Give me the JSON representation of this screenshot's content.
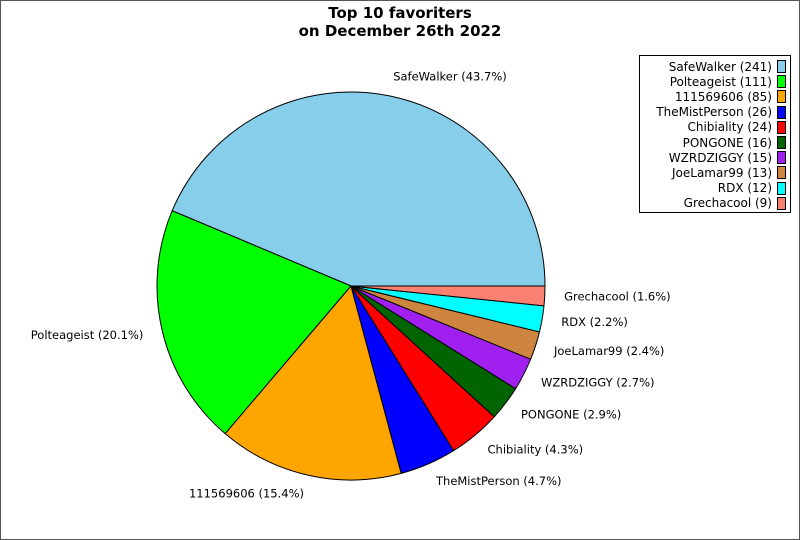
{
  "chart_data": {
    "type": "pie",
    "title_line1": "Top 10 favoriters",
    "title_line2": "on December 26th 2022",
    "start_angle_deg": 0,
    "direction": "counterclockwise",
    "legend_placement": "top-right",
    "slices": [
      {
        "name": "SafeWalker",
        "value": 241,
        "percent_label": "SafeWalker (43.7%)",
        "legend_label": "SafeWalker (241)",
        "color": "#87CEEB"
      },
      {
        "name": "Polteageist",
        "value": 111,
        "percent_label": "Polteageist (20.1%)",
        "legend_label": "Polteageist (111)",
        "color": "#00FF00"
      },
      {
        "name": "111569606",
        "value": 85,
        "percent_label": "111569606 (15.4%)",
        "legend_label": "111569606 (85)",
        "color": "#FFA500"
      },
      {
        "name": "TheMistPerson",
        "value": 26,
        "percent_label": "TheMistPerson (4.7%)",
        "legend_label": "TheMistPerson (26)",
        "color": "#0000FF"
      },
      {
        "name": "Chibiality",
        "value": 24,
        "percent_label": "Chibiality (4.3%)",
        "legend_label": "Chibiality (24)",
        "color": "#FF0000"
      },
      {
        "name": "PONGONE",
        "value": 16,
        "percent_label": "PONGONE (2.9%)",
        "legend_label": "PONGONE (16)",
        "color": "#006400"
      },
      {
        "name": "WZRDZIGGY",
        "value": 15,
        "percent_label": "WZRDZIGGY (2.7%)",
        "legend_label": "WZRDZIGGY (15)",
        "color": "#A020F0"
      },
      {
        "name": "JoeLamar99",
        "value": 13,
        "percent_label": "JoeLamar99 (2.4%)",
        "legend_label": "JoeLamar99 (13)",
        "color": "#CD853F"
      },
      {
        "name": "RDX",
        "value": 12,
        "percent_label": "RDX (2.2%)",
        "legend_label": "RDX (12)",
        "color": "#00FFFF"
      },
      {
        "name": "Grechacool",
        "value": 9,
        "percent_label": "Grechacool (1.6%)",
        "legend_label": "Grechacool (9)",
        "color": "#FA8072"
      }
    ]
  }
}
